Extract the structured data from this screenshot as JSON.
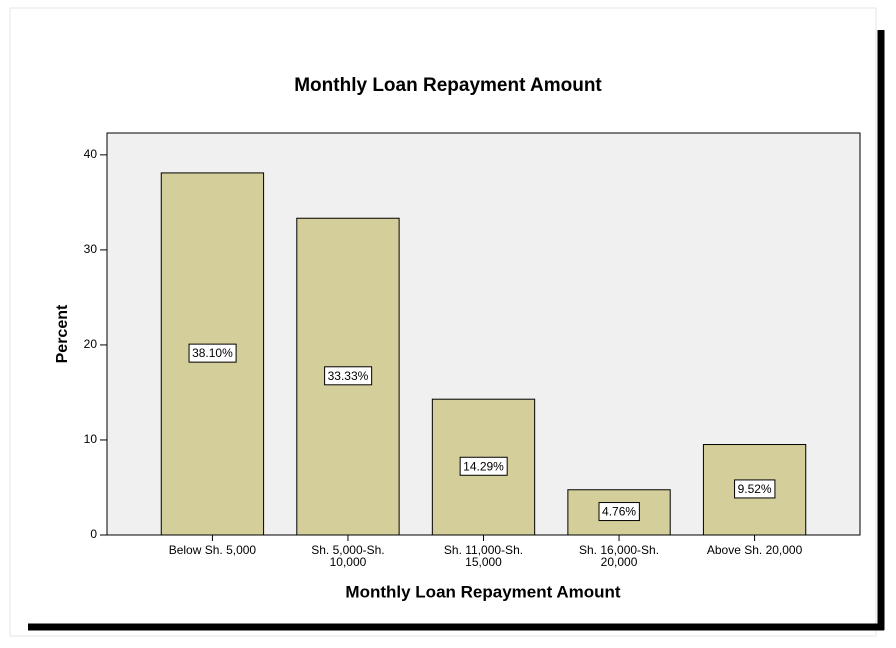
{
  "chart_data": {
    "type": "bar",
    "title": "Monthly Loan Repayment Amount",
    "x_label": "Monthly Loan Repayment Amount",
    "y_label": "Percent",
    "categories": [
      "Below Sh. 5,000",
      "Sh. 5,000-Sh. 10,000",
      "Sh. 11,000-Sh. 15,000",
      "Sh. 16,000-Sh. 20,000",
      "Above Sh. 20,000"
    ],
    "values": [
      38.1,
      33.33,
      14.29,
      4.76,
      9.52
    ],
    "value_labels": [
      "38.10%",
      "33.33%",
      "14.29%",
      "4.76%",
      "9.52%"
    ],
    "color": "#d4cf9a",
    "ylim": [
      0,
      42.3
    ],
    "yticks": [
      0,
      10,
      20,
      30,
      40
    ],
    "grid": false
  }
}
